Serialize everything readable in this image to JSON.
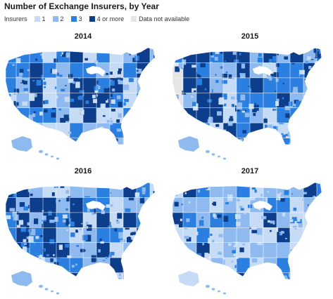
{
  "title": "Number of Exchange Insurers, by Year",
  "legend": {
    "label": "Insurers",
    "items": [
      {
        "key": "1",
        "label": "1",
        "color": "#c6dcf6"
      },
      {
        "key": "2",
        "label": "2",
        "color": "#8fbaf0"
      },
      {
        "key": "3",
        "label": "3",
        "color": "#2b7fe0"
      },
      {
        "key": "4",
        "label": "4 or more",
        "color": "#0d3e8c"
      },
      {
        "key": "na",
        "label": "Data not available",
        "color": "#e5e5e5"
      }
    ]
  },
  "maps": [
    {
      "year": "2014",
      "seed": 11,
      "weights": [
        0.18,
        0.28,
        0.28,
        0.26,
        0.0
      ],
      "west_dark": true,
      "west_gray": false
    },
    {
      "year": "2015",
      "seed": 23,
      "weights": [
        0.08,
        0.22,
        0.32,
        0.38,
        0.0
      ],
      "west_dark": true,
      "west_gray": true
    },
    {
      "year": "2016",
      "seed": 37,
      "weights": [
        0.14,
        0.26,
        0.3,
        0.3,
        0.0
      ],
      "west_dark": true,
      "west_gray": false
    },
    {
      "year": "2017",
      "seed": 51,
      "weights": [
        0.36,
        0.3,
        0.22,
        0.12,
        0.0
      ],
      "west_dark": false,
      "west_gray": false
    }
  ]
}
